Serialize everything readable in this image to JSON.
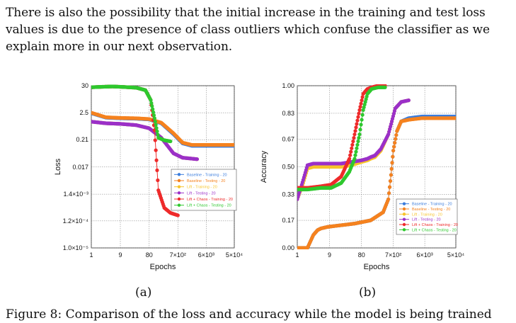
{
  "paragraph": "There is also the possibility that the initial increase in the training and test loss values is due to the presence of class outliers which confuse the classifier as we explain more in our next observation.",
  "captions": {
    "a": "(a)",
    "b": "(b)"
  },
  "bottom_text": "Figure 8: Comparison of the loss and accuracy while the model is being trained",
  "colors": {
    "baseline_training": "#3b7ddd",
    "baseline_testing": "#f5821f",
    "lift_training": "#f7c42a",
    "lift_testing": "#9b30c8",
    "lift_chaos_training": "#ee2a2a",
    "lift_chaos_testing": "#2ec82e"
  },
  "chart_data": [
    {
      "type": "scatter",
      "xlabel": "Epochs",
      "ylabel": "Loss",
      "x_scale": "log",
      "y_scale": "log",
      "xlim": [
        1,
        50000
      ],
      "ylim": [
        1e-05,
        30
      ],
      "x_ticks": [
        "1",
        "9",
        "80",
        "7×10²",
        "6×10³",
        "5×10⁴"
      ],
      "x_tick_values": [
        1,
        9,
        80,
        700,
        6000,
        50000
      ],
      "y_ticks": [
        "1.0×10⁻⁵",
        "1.2×10⁻⁴",
        "1.4×10⁻³",
        "0.017",
        "0.21",
        "2.5",
        "30"
      ],
      "y_tick_values": [
        1e-05,
        0.00012,
        0.0014,
        0.017,
        0.21,
        2.5,
        30
      ],
      "grid": true,
      "legend_position": "center-right",
      "series": [
        {
          "name": "Baseline - Training - 20",
          "color": "#3b7ddd",
          "x": [
            1,
            3,
            9,
            30,
            80,
            200,
            500,
            1000,
            2000,
            5000,
            20000,
            50000
          ],
          "y": [
            2.4,
            1.6,
            1.5,
            1.45,
            1.35,
            0.95,
            0.35,
            0.15,
            0.12,
            0.12,
            0.12,
            0.12
          ]
        },
        {
          "name": "Baseline - Testing - 20",
          "color": "#f5821f",
          "x": [
            1,
            3,
            9,
            30,
            80,
            200,
            500,
            1000,
            2000,
            5000,
            20000,
            50000
          ],
          "y": [
            2.5,
            1.65,
            1.55,
            1.5,
            1.4,
            1.0,
            0.38,
            0.16,
            0.13,
            0.13,
            0.13,
            0.13
          ]
        },
        {
          "name": "Lift - Training - 20",
          "color": "#f7c42a",
          "x": [
            1,
            3,
            9,
            30,
            80,
            200,
            500,
            1000,
            3000
          ],
          "y": [
            1.1,
            0.95,
            0.9,
            0.8,
            0.6,
            0.25,
            0.06,
            0.04,
            0.035
          ]
        },
        {
          "name": "Lift - Testing - 20",
          "color": "#9b30c8",
          "x": [
            1,
            3,
            9,
            30,
            80,
            200,
            500,
            1000,
            3000
          ],
          "y": [
            1.1,
            0.95,
            0.9,
            0.8,
            0.6,
            0.25,
            0.06,
            0.04,
            0.035
          ]
        },
        {
          "name": "Lift + Chaos - Training - 20",
          "color": "#ee2a2a",
          "x": [
            1,
            2,
            5,
            10,
            30,
            60,
            90,
            120,
            160,
            250,
            400,
            700
          ],
          "y": [
            26,
            27,
            28,
            27,
            25,
            20,
            8,
            0.5,
            0.002,
            0.0004,
            0.00025,
            0.0002
          ]
        },
        {
          "name": "Lift + Chaos - Testing - 20",
          "color": "#2ec82e",
          "x": [
            1,
            2,
            5,
            10,
            30,
            60,
            90,
            120,
            160,
            250,
            400
          ],
          "y": [
            26,
            27,
            28,
            27,
            25,
            20,
            8,
            1.5,
            0.25,
            0.2,
            0.18
          ]
        }
      ]
    },
    {
      "type": "scatter",
      "xlabel": "Epochs",
      "ylabel": "Accuracy",
      "x_scale": "log",
      "y_scale": "linear",
      "xlim": [
        1,
        50000
      ],
      "ylim": [
        0,
        1
      ],
      "x_ticks": [
        "1",
        "9",
        "80",
        "7×10²",
        "6×10³",
        "5×10⁴"
      ],
      "x_tick_values": [
        1,
        9,
        80,
        700,
        6000,
        50000
      ],
      "y_ticks": [
        "0.00",
        "0.17",
        "0.33",
        "0.50",
        "0.67",
        "0.83",
        "1.00"
      ],
      "y_tick_values": [
        0,
        0.17,
        0.33,
        0.5,
        0.67,
        0.83,
        1.0
      ],
      "grid": true,
      "legend_position": "bottom-right",
      "series": [
        {
          "name": "Baseline - Training - 20",
          "color": "#3b7ddd",
          "x": [
            1,
            2,
            3,
            4,
            5,
            8,
            20,
            50,
            150,
            350,
            500,
            600,
            700,
            900,
            1200,
            2000,
            5000,
            50000
          ],
          "y": [
            0,
            0,
            0.08,
            0.11,
            0.12,
            0.13,
            0.14,
            0.15,
            0.17,
            0.22,
            0.3,
            0.45,
            0.6,
            0.72,
            0.78,
            0.8,
            0.81,
            0.81
          ]
        },
        {
          "name": "Baseline - Testing - 20",
          "color": "#f5821f",
          "x": [
            1,
            2,
            3,
            4,
            5,
            8,
            20,
            50,
            150,
            350,
            500,
            600,
            700,
            900,
            1200,
            2000,
            5000,
            50000
          ],
          "y": [
            0,
            0,
            0.08,
            0.11,
            0.12,
            0.13,
            0.14,
            0.15,
            0.17,
            0.22,
            0.3,
            0.45,
            0.6,
            0.72,
            0.78,
            0.79,
            0.8,
            0.8
          ]
        },
        {
          "name": "Lift - Training - 20",
          "color": "#f7c42a",
          "x": [
            1,
            1.5,
            2,
            3,
            5,
            10,
            20,
            40,
            80,
            120,
            150,
            200,
            300,
            500,
            800,
            1200,
            2000
          ],
          "y": [
            0.3,
            0.4,
            0.49,
            0.5,
            0.5,
            0.5,
            0.5,
            0.51,
            0.53,
            0.54,
            0.55,
            0.56,
            0.6,
            0.7,
            0.86,
            0.9,
            0.91
          ]
        },
        {
          "name": "Lift - Testing - 20",
          "color": "#9b30c8",
          "x": [
            1,
            1.5,
            2,
            3,
            5,
            10,
            20,
            40,
            80,
            120,
            150,
            200,
            300,
            500,
            800,
            1200,
            2000
          ],
          "y": [
            0.3,
            0.42,
            0.51,
            0.52,
            0.52,
            0.52,
            0.52,
            0.53,
            0.54,
            0.55,
            0.56,
            0.57,
            0.61,
            0.7,
            0.86,
            0.9,
            0.91
          ]
        },
        {
          "name": "Lift + Chaos - Training - 20",
          "color": "#ee2a2a",
          "x": [
            1,
            2,
            5,
            10,
            20,
            35,
            50,
            70,
            90,
            120,
            160,
            250,
            400
          ],
          "y": [
            0.37,
            0.37,
            0.38,
            0.39,
            0.44,
            0.55,
            0.7,
            0.85,
            0.95,
            0.98,
            0.99,
            1.0,
            1.0
          ]
        },
        {
          "name": "Lift + Chaos - Testing - 20",
          "color": "#2ec82e",
          "x": [
            1,
            2,
            5,
            10,
            20,
            35,
            50,
            70,
            90,
            120,
            160,
            250,
            400
          ],
          "y": [
            0.36,
            0.36,
            0.37,
            0.37,
            0.4,
            0.47,
            0.55,
            0.7,
            0.85,
            0.95,
            0.98,
            0.99,
            0.99
          ]
        }
      ]
    }
  ]
}
